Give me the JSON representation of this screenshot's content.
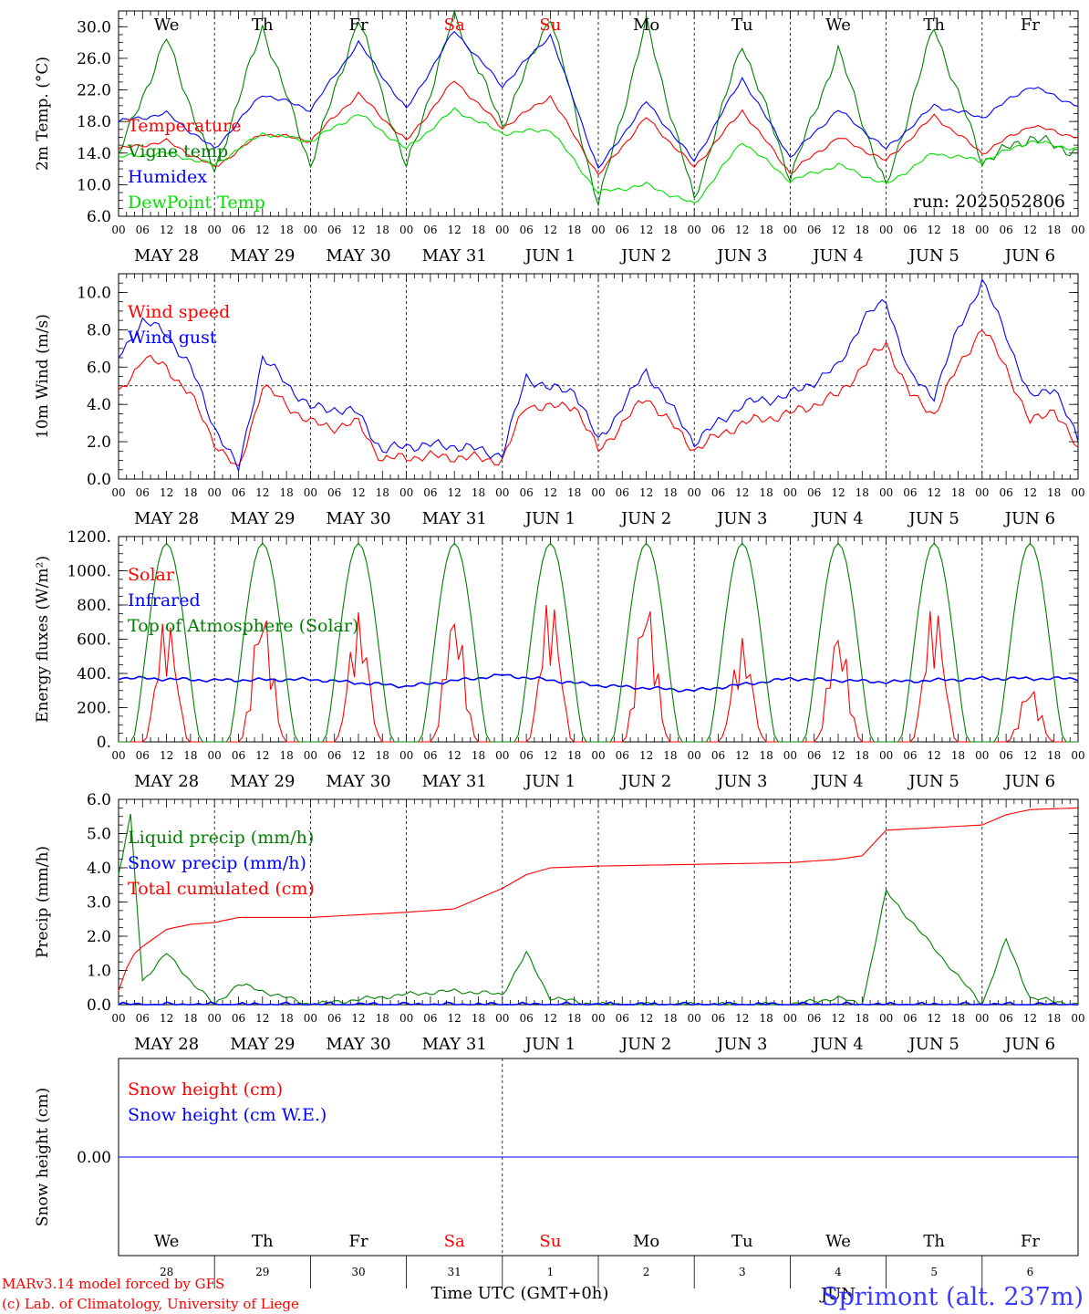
{
  "location": "Sprimont (alt. 237m)",
  "credits": [
    "MARv3.14 model forced by GFS",
    "(c) Lab. of Climatology, University of Liege"
  ],
  "xaxis_title": "Time UTC (GMT+0h)",
  "run_label": "run: 2025052806",
  "month_label": "JUN",
  "days": [
    "We",
    "Th",
    "Fr",
    "Sa",
    "Su",
    "Mo",
    "Tu",
    "We",
    "Th",
    "Fr"
  ],
  "weekend_indices": [
    3,
    4
  ],
  "day_numbers": [
    "28",
    "29",
    "30",
    "31",
    "1",
    "2",
    "3",
    "4",
    "5",
    "6"
  ],
  "date_labels": [
    "MAY 28",
    "MAY 29",
    "MAY 30",
    "MAY 31",
    "JUN  1",
    "JUN  2",
    "JUN  3",
    "JUN  4",
    "JUN  5",
    "JUN  6"
  ],
  "hour_labels": [
    "00",
    "06",
    "12",
    "18"
  ],
  "colors": {
    "red": "#ff0000",
    "green": "#008000",
    "blue": "#0000ff",
    "lightgreen": "#00e000"
  },
  "chart_data": [
    {
      "type": "line",
      "ylabel": "2m Temp. (°C)",
      "ylim": [
        6,
        32
      ],
      "yticks": [
        "6.0",
        "10.0",
        "14.0",
        "18.0",
        "22.0",
        "26.0",
        "30.0"
      ],
      "x_unit": "hours since 2025-05-28 00 UTC",
      "x": [
        0,
        12,
        24,
        36,
        48,
        60,
        72,
        84,
        96,
        108,
        120,
        132,
        144,
        156,
        168,
        180,
        192,
        204,
        216,
        228,
        240
      ],
      "series": [
        {
          "name": "Temperature",
          "color": "red",
          "values": [
            14.5,
            15.5,
            12.2,
            16.5,
            15.6,
            21.5,
            15.5,
            23.2,
            17.2,
            21.2,
            11.2,
            18.5,
            12.2,
            19.4,
            11.5,
            16.0,
            13.0,
            18.7,
            14.0,
            17.5,
            16.0
          ]
        },
        {
          "name": "Vigne temp",
          "color": "green",
          "values": [
            13.8,
            28.5,
            11.5,
            30.0,
            12.5,
            31.0,
            12.0,
            31.5,
            17.5,
            31.5,
            7.5,
            30.5,
            8.0,
            28.0,
            11.0,
            27.0,
            9.5,
            30.0,
            13.0,
            16.0,
            14.0
          ]
        },
        {
          "name": "Humidex",
          "color": "blue",
          "values": [
            18.0,
            19.0,
            14.5,
            21.5,
            19.5,
            28.0,
            19.5,
            29.5,
            22.5,
            29.0,
            12.0,
            20.5,
            13.0,
            23.5,
            13.5,
            19.5,
            14.5,
            20.0,
            18.5,
            22.5,
            20.0
          ]
        },
        {
          "name": "DewPoint Temp",
          "color": "lightgreen",
          "values": [
            13.5,
            14.0,
            12.5,
            16.5,
            15.5,
            19.0,
            14.5,
            19.5,
            16.5,
            17.0,
            9.0,
            10.0,
            7.5,
            15.5,
            10.5,
            12.5,
            10.0,
            14.0,
            13.0,
            15.5,
            14.5
          ]
        }
      ]
    },
    {
      "type": "line",
      "ylabel": "10m Wind (m/s)",
      "ylim": [
        0,
        11
      ],
      "yticks": [
        "0.0",
        "2.0",
        "4.0",
        "6.0",
        "8.0",
        "10.0"
      ],
      "reference_line": 5,
      "x_unit": "hours since 2025-05-28 00 UTC",
      "x": [
        0,
        6,
        12,
        18,
        24,
        30,
        36,
        48,
        54,
        60,
        66,
        72,
        84,
        96,
        102,
        108,
        114,
        120,
        132,
        144,
        156,
        168,
        180,
        186,
        192,
        198,
        204,
        210,
        216,
        222,
        228,
        234,
        240
      ],
      "series": [
        {
          "name": "Wind speed",
          "color": "red",
          "values": [
            4.5,
            6.5,
            6.0,
            4.5,
            2.0,
            0.4,
            5.0,
            3.0,
            2.8,
            3.0,
            1.0,
            1.2,
            1.2,
            1.0,
            4.0,
            3.8,
            4.0,
            1.5,
            4.4,
            1.6,
            3.0,
            3.5,
            4.5,
            6.0,
            7.3,
            4.5,
            3.5,
            6.0,
            8.1,
            6.0,
            3.0,
            3.8,
            1.5
          ]
        },
        {
          "name": "Wind gust",
          "color": "blue",
          "values": [
            6.5,
            8.5,
            7.8,
            6.0,
            2.8,
            0.5,
            6.5,
            3.8,
            3.8,
            3.5,
            1.5,
            1.8,
            1.8,
            1.3,
            5.5,
            4.8,
            4.8,
            2.0,
            5.8,
            2.0,
            4.0,
            4.5,
            6.0,
            8.5,
            9.6,
            5.5,
            4.5,
            8.0,
            10.6,
            7.8,
            4.3,
            5.0,
            2.0
          ]
        }
      ]
    },
    {
      "type": "line",
      "ylabel": "Energy fluxes (W/m²)",
      "ylim": [
        0,
        1200
      ],
      "yticks": [
        "0.",
        "200.",
        "400.",
        "600.",
        "800.",
        "1000.",
        "1200."
      ],
      "x_unit": "hours since 2025-05-28 00 UTC",
      "daily_peaks": {
        "Solar": [
          750,
          800,
          760,
          780,
          870,
          860,
          610,
          670,
          830,
          330
        ],
        "Top of Atmosphere (Solar)": [
          1160,
          1160,
          1160,
          1160,
          1160,
          1160,
          1160,
          1160,
          1160,
          1160
        ]
      },
      "x": [
        0,
        24,
        48,
        72,
        96,
        120,
        144,
        168,
        192,
        216,
        240
      ],
      "series": [
        {
          "name": "Solar",
          "color": "red",
          "values": [
            0,
            0,
            0,
            0,
            0,
            0,
            0,
            0,
            0,
            0,
            0
          ]
        },
        {
          "name": "Infrared",
          "color": "blue",
          "values": [
            375,
            360,
            365,
            325,
            390,
            330,
            300,
            370,
            350,
            370,
            370
          ]
        },
        {
          "name": "Top of Atmosphere (Solar)",
          "color": "green",
          "values": [
            0,
            0,
            0,
            0,
            0,
            0,
            0,
            0,
            0,
            0,
            0
          ]
        }
      ]
    },
    {
      "type": "line",
      "ylabel": "Precip (mm/h)",
      "ylim": [
        0,
        6
      ],
      "yticks": [
        "0.0",
        "1.0",
        "2.0",
        "3.0",
        "4.0",
        "5.0",
        "6.0"
      ],
      "x_unit": "hours since 2025-05-28 00 UTC",
      "x": [
        0,
        3,
        6,
        12,
        18,
        24,
        30,
        48,
        72,
        84,
        96,
        102,
        108,
        120,
        144,
        168,
        180,
        186,
        192,
        216,
        222,
        228,
        240
      ],
      "series": [
        {
          "name": "Liquid precip (mm/h)",
          "color": "green",
          "values": [
            3.8,
            5.5,
            0.7,
            1.5,
            0.7,
            0.0,
            0.6,
            0.0,
            0.3,
            0.4,
            0.3,
            1.5,
            0.2,
            0.0,
            0.0,
            0.0,
            0.2,
            0.0,
            3.3,
            0.0,
            1.9,
            0.2,
            0.0
          ]
        },
        {
          "name": "Snow precip (mm/h)",
          "color": "blue",
          "values": [
            0,
            0,
            0,
            0,
            0,
            0,
            0,
            0,
            0,
            0,
            0,
            0,
            0,
            0,
            0,
            0,
            0,
            0,
            0,
            0,
            0,
            0,
            0
          ]
        },
        {
          "name": "Total cumulated (cm)",
          "color": "red",
          "values": [
            0.4,
            1.4,
            1.7,
            2.2,
            2.35,
            2.4,
            2.55,
            2.55,
            2.7,
            2.8,
            3.4,
            3.8,
            4.0,
            4.05,
            4.1,
            4.15,
            4.25,
            4.35,
            5.1,
            5.25,
            5.55,
            5.7,
            5.75
          ]
        }
      ]
    },
    {
      "type": "line",
      "ylabel": "Snow height (cm)",
      "ylim": [
        -1,
        1
      ],
      "yticks": [
        "0.00"
      ],
      "x_unit": "hours since 2025-05-28 00 UTC",
      "x": [
        0,
        240
      ],
      "series": [
        {
          "name": "Snow height (cm)",
          "color": "red",
          "values": [
            0,
            0
          ]
        },
        {
          "name": "Snow height (cm W.E.)",
          "color": "blue",
          "values": [
            0,
            0
          ]
        }
      ]
    }
  ]
}
